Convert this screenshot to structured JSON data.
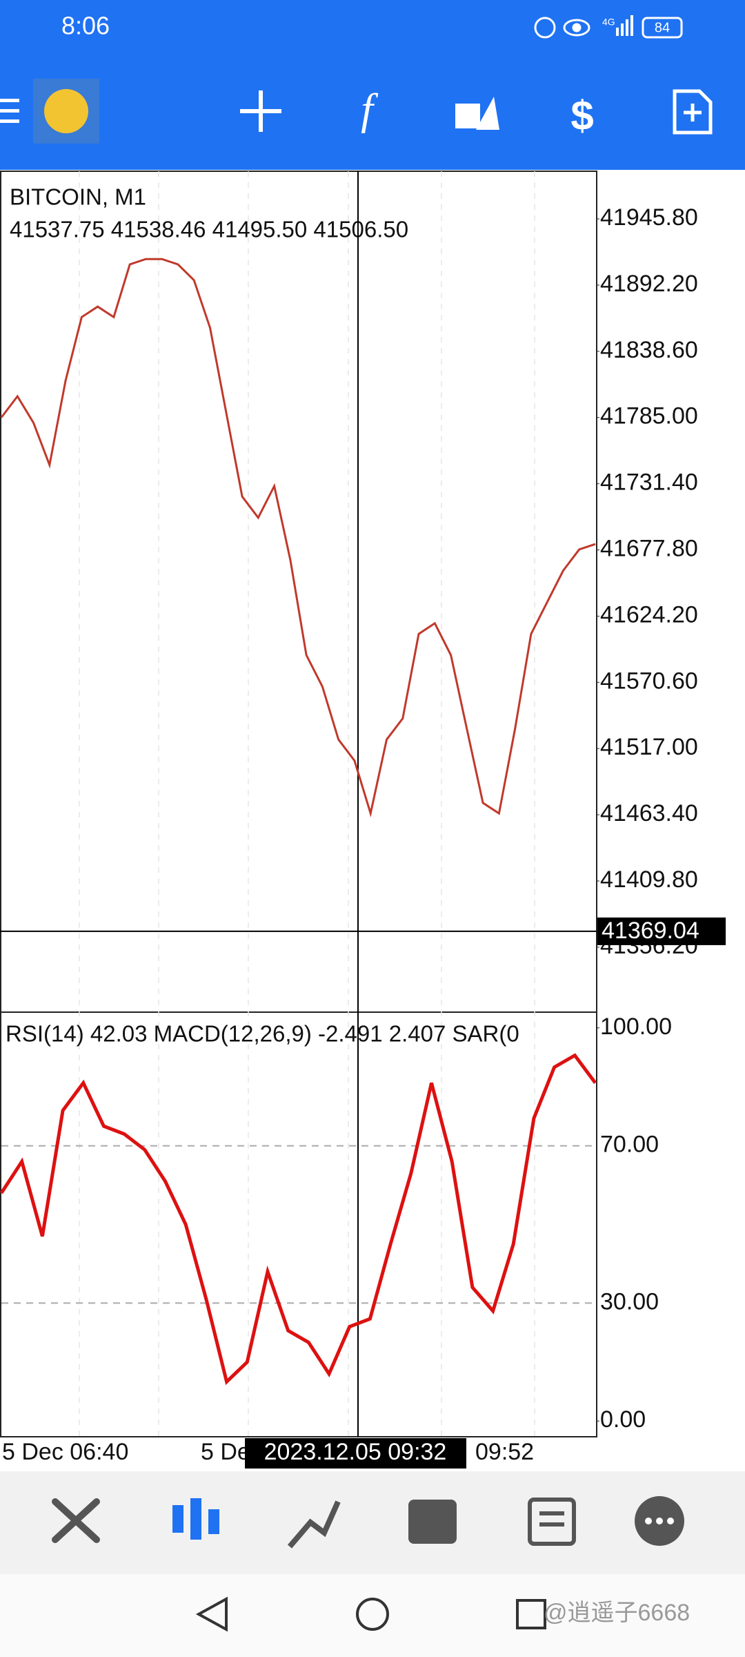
{
  "status_bar": {
    "time": "8:06",
    "network": "4G",
    "battery": "84"
  },
  "chart_data": [
    {
      "type": "line",
      "title": "BITCOIN, M1",
      "subtitle": "41537.75 41538.46 41495.50 41506.50",
      "values": [
        41785.1,
        41802.2,
        41780.8,
        41746.6,
        41815.0,
        41866.3,
        41874.8,
        41866.3,
        41909.0,
        41913.3,
        41913.3,
        41909.0,
        41896.2,
        41857.7,
        41789.4,
        41721.0,
        41703.9,
        41729.5,
        41669.7,
        41592.7,
        41567.1,
        41524.3,
        41507.2,
        41464.5,
        41524.3,
        41541.4,
        41609.8,
        41618.4,
        41592.7,
        41532.9,
        41473.0,
        41464.5,
        41532.9,
        41609.8,
        41635.5,
        41661.1,
        41678.2,
        41682.5
      ],
      "color": "#c0392b",
      "ylim": [
        41303.6,
        41984.4
      ],
      "yticks": [
        {
          "value": 41945.8,
          "label": "41945.80"
        },
        {
          "value": 41892.2,
          "label": "41892.20"
        },
        {
          "value": 41838.6,
          "label": "41838.60"
        },
        {
          "value": 41785.0,
          "label": "41785.00"
        },
        {
          "value": 41731.4,
          "label": "41731.40"
        },
        {
          "value": 41677.8,
          "label": "41677.80"
        },
        {
          "value": 41624.2,
          "label": "41624.20"
        },
        {
          "value": 41570.6,
          "label": "41570.60"
        },
        {
          "value": 41517.0,
          "label": "41517.00"
        },
        {
          "value": 41463.4,
          "label": "41463.40"
        },
        {
          "value": 41409.8,
          "label": "41409.80"
        },
        {
          "value": 41356.2,
          "label": "41356.20"
        }
      ],
      "crosshair_value": 41369.04
    },
    {
      "type": "line",
      "title": "RSI(14) 42.03 MACD(12,26,9)  -2.491 2.407 SAR(0",
      "values": [
        58,
        66,
        47,
        79,
        86,
        75,
        73,
        69,
        61,
        50,
        31,
        10,
        15,
        38,
        23,
        20,
        12,
        24,
        26,
        45,
        63,
        86,
        66,
        34,
        28,
        45,
        77,
        90,
        93,
        86
      ],
      "color": "#dd1111",
      "ylim": [
        -4,
        104
      ],
      "yticks": [
        {
          "value": 100,
          "label": "100.00"
        },
        {
          "value": 70,
          "label": "70.00"
        },
        {
          "value": 30,
          "label": "30.00"
        },
        {
          "value": 0,
          "label": "0.00"
        }
      ]
    }
  ],
  "time_axis": {
    "labels": [
      "5 Dec 06:40",
      "5 De",
      "09:52"
    ],
    "crosshair_time": "2023.12.05 09:32"
  },
  "watermark": "@逍遥子6668"
}
